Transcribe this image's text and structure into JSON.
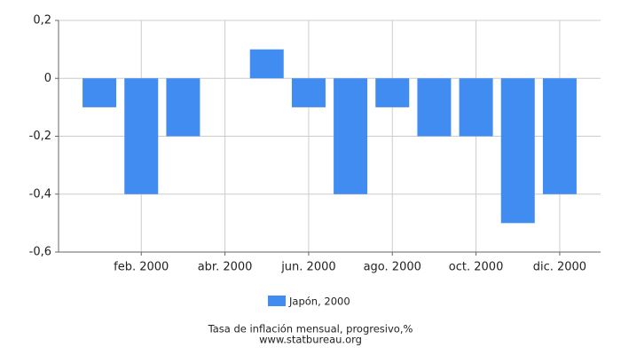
{
  "chart_data": {
    "type": "bar",
    "categories": [
      null,
      "feb. 2000",
      null,
      "abr. 2000",
      null,
      "jun. 2000",
      null,
      "ago. 2000",
      null,
      "oct. 2000",
      null,
      "dic. 2000"
    ],
    "series": [
      {
        "name": "Japón, 2000",
        "color": "#418cf0",
        "values": [
          -0.1,
          -0.4,
          -0.2,
          0,
          0.1,
          -0.1,
          -0.4,
          -0.1,
          -0.2,
          -0.2,
          -0.5,
          -0.4
        ]
      }
    ],
    "ylim": [
      -0.6,
      0.2
    ],
    "yticks": [
      {
        "value": 0.2,
        "label": "0,2"
      },
      0,
      {
        "value": -0.2,
        "label": "-0,2"
      },
      {
        "value": -0.4,
        "label": "-0,4"
      },
      {
        "value": -0.6,
        "label": "-0,6"
      }
    ],
    "grid": true,
    "caption": "Tasa de inflación mensual, progresivo,%",
    "source": "www.statbureau.org"
  }
}
